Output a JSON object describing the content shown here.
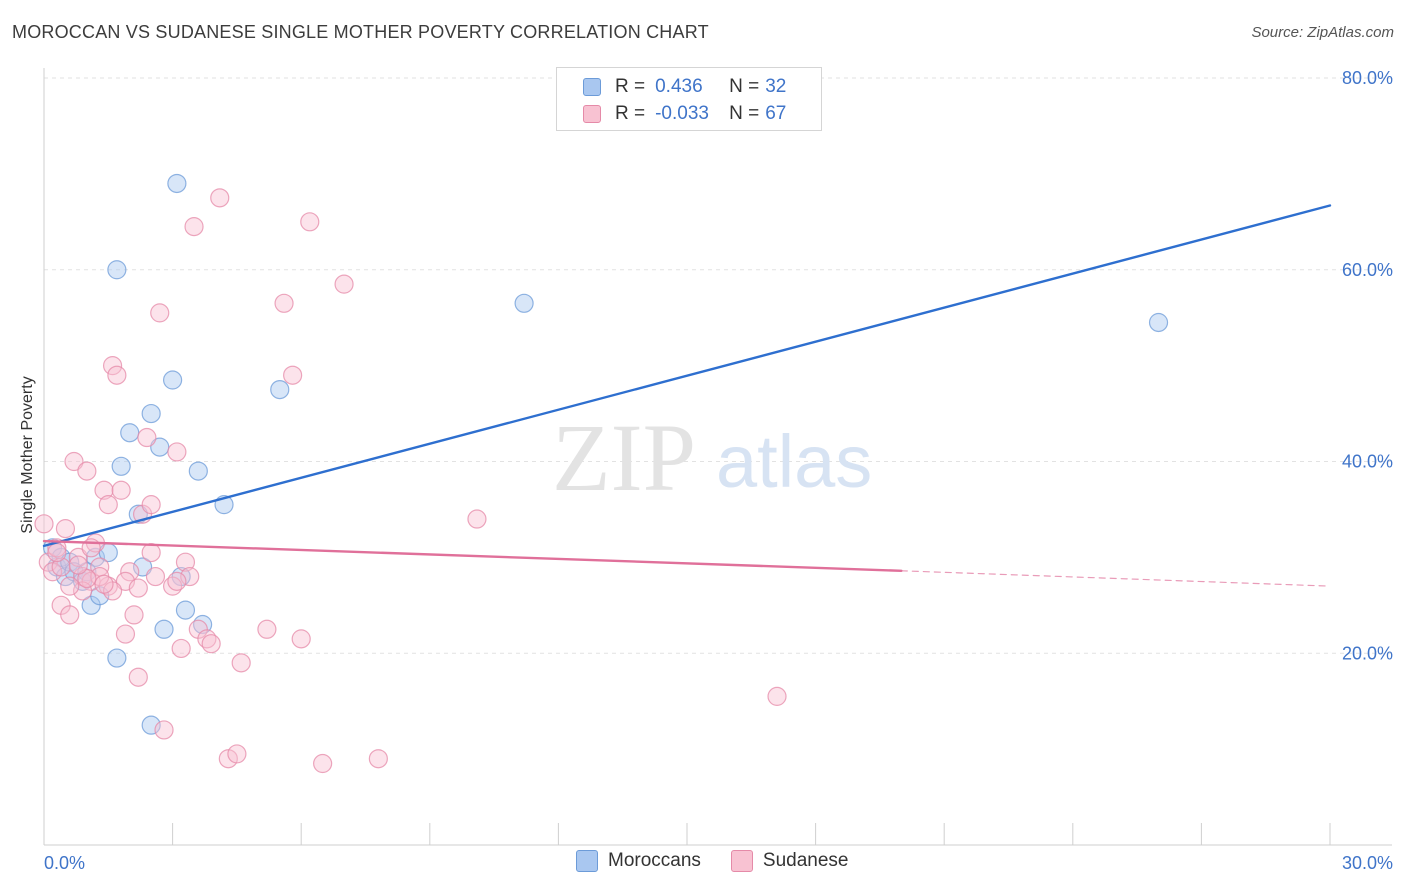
{
  "header": {
    "title": "MOROCCAN VS SUDANESE SINGLE MOTHER POVERTY CORRELATION CHART",
    "source": "Source: ZipAtlas.com"
  },
  "watermark": {
    "zip": "ZIP",
    "atlas": "atlas"
  },
  "legend": {
    "rows": [
      {
        "r_label": "R =",
        "r_value": "0.436",
        "n_label": "N =",
        "n_value": "32",
        "color": "#a9c7f0",
        "border": "#6c9bd8"
      },
      {
        "r_label": "R =",
        "r_value": "-0.033",
        "n_label": "N =",
        "n_value": "67",
        "color": "#f8c2d2",
        "border": "#e58aa8"
      }
    ]
  },
  "bottom_legend": {
    "moroccans": "Moroccans",
    "sudanese": "Sudanese"
  },
  "chart_data": {
    "type": "scatter",
    "title": "MOROCCAN VS SUDANESE SINGLE MOTHER POVERTY CORRELATION CHART",
    "xlabel": "",
    "ylabel": "Single Mother Poverty",
    "xlim": [
      0,
      30
    ],
    "ylim": [
      0,
      80
    ],
    "x_tick_labels": [
      "0.0%",
      "30.0%"
    ],
    "y_ticks": [
      20,
      40,
      60,
      80
    ],
    "y_tick_labels": [
      "20.0%",
      "40.0%",
      "60.0%",
      "80.0%"
    ],
    "grid": true,
    "colors": {
      "moroccans": "#6c9bd8",
      "moroccans_fill": "#a9c7f0",
      "sudanese": "#e58aa8",
      "sudanese_fill": "#f8c2d2",
      "blue_line": "#2e6fcf",
      "pink_line": "#e0709a"
    },
    "series": [
      {
        "name": "Moroccans",
        "points": [
          [
            0.2,
            31
          ],
          [
            0.3,
            29
          ],
          [
            0.4,
            30
          ],
          [
            0.5,
            28
          ],
          [
            0.6,
            29.5
          ],
          [
            0.7,
            28.5
          ],
          [
            0.9,
            27.5
          ],
          [
            1.1,
            25
          ],
          [
            1.3,
            26
          ],
          [
            1.2,
            30
          ],
          [
            1.5,
            30.5
          ],
          [
            1.8,
            39.5
          ],
          [
            1.7,
            19.5
          ],
          [
            1.7,
            60
          ],
          [
            2.0,
            43
          ],
          [
            2.2,
            34.5
          ],
          [
            2.3,
            29
          ],
          [
            2.5,
            45
          ],
          [
            2.7,
            41.5
          ],
          [
            2.5,
            12.5
          ],
          [
            2.8,
            22.5
          ],
          [
            3.0,
            48.5
          ],
          [
            3.1,
            69
          ],
          [
            3.2,
            28
          ],
          [
            3.3,
            24.5
          ],
          [
            3.6,
            39
          ],
          [
            3.7,
            23
          ],
          [
            4.2,
            35.5
          ],
          [
            5.5,
            47.5
          ],
          [
            11.2,
            56.5
          ],
          [
            26.0,
            54.5
          ],
          [
            1.0,
            28.5
          ]
        ]
      },
      {
        "name": "Sudanese",
        "points": [
          [
            0.0,
            33.5
          ],
          [
            0.1,
            29.5
          ],
          [
            0.2,
            28.5
          ],
          [
            0.3,
            31
          ],
          [
            0.4,
            25
          ],
          [
            0.5,
            33
          ],
          [
            0.6,
            24
          ],
          [
            0.7,
            40
          ],
          [
            0.8,
            30
          ],
          [
            0.9,
            28
          ],
          [
            1.0,
            39
          ],
          [
            1.1,
            27.5
          ],
          [
            1.2,
            31.5
          ],
          [
            1.3,
            29
          ],
          [
            1.4,
            37
          ],
          [
            1.5,
            35.5
          ],
          [
            1.5,
            27
          ],
          [
            1.6,
            50
          ],
          [
            1.7,
            49
          ],
          [
            1.8,
            37
          ],
          [
            1.9,
            22
          ],
          [
            2.0,
            28.5
          ],
          [
            2.1,
            24
          ],
          [
            2.2,
            17.5
          ],
          [
            2.3,
            34.5
          ],
          [
            2.4,
            42.5
          ],
          [
            2.5,
            30.5
          ],
          [
            2.5,
            35.5
          ],
          [
            2.7,
            55.5
          ],
          [
            2.8,
            12
          ],
          [
            3.0,
            27
          ],
          [
            3.1,
            41
          ],
          [
            3.2,
            20.5
          ],
          [
            3.3,
            29.5
          ],
          [
            3.4,
            28
          ],
          [
            3.5,
            64.5
          ],
          [
            3.6,
            22.5
          ],
          [
            3.8,
            21.5
          ],
          [
            3.9,
            21
          ],
          [
            4.1,
            67.5
          ],
          [
            4.3,
            9
          ],
          [
            4.6,
            19
          ],
          [
            4.5,
            9.5
          ],
          [
            5.2,
            22.5
          ],
          [
            5.6,
            56.5
          ],
          [
            5.8,
            49
          ],
          [
            6.0,
            21.5
          ],
          [
            6.5,
            8.5
          ],
          [
            6.2,
            65
          ],
          [
            7.0,
            58.5
          ],
          [
            7.8,
            9
          ],
          [
            10.1,
            34
          ],
          [
            17.1,
            15.5
          ],
          [
            0.4,
            29
          ],
          [
            0.9,
            26.5
          ],
          [
            1.1,
            31
          ],
          [
            1.3,
            28
          ],
          [
            1.9,
            27.5
          ],
          [
            2.6,
            28
          ],
          [
            3.1,
            27.5
          ],
          [
            1.6,
            26.5
          ],
          [
            0.6,
            27
          ],
          [
            0.3,
            30.5
          ],
          [
            1.0,
            27.8
          ],
          [
            2.2,
            26.8
          ],
          [
            1.4,
            27.2
          ],
          [
            0.8,
            29.2
          ]
        ]
      }
    ],
    "trend_lines": [
      {
        "name": "Moroccans trend",
        "x": [
          0,
          30
        ],
        "y": [
          31.2,
          66.7
        ],
        "style": "solid"
      },
      {
        "name": "Sudanese trend",
        "x": [
          0,
          20
        ],
        "y": [
          31.7,
          28.6
        ],
        "style": "solid"
      },
      {
        "name": "Sudanese trend extension",
        "x": [
          20,
          30
        ],
        "y": [
          28.6,
          27.0
        ],
        "style": "dashed"
      }
    ]
  }
}
